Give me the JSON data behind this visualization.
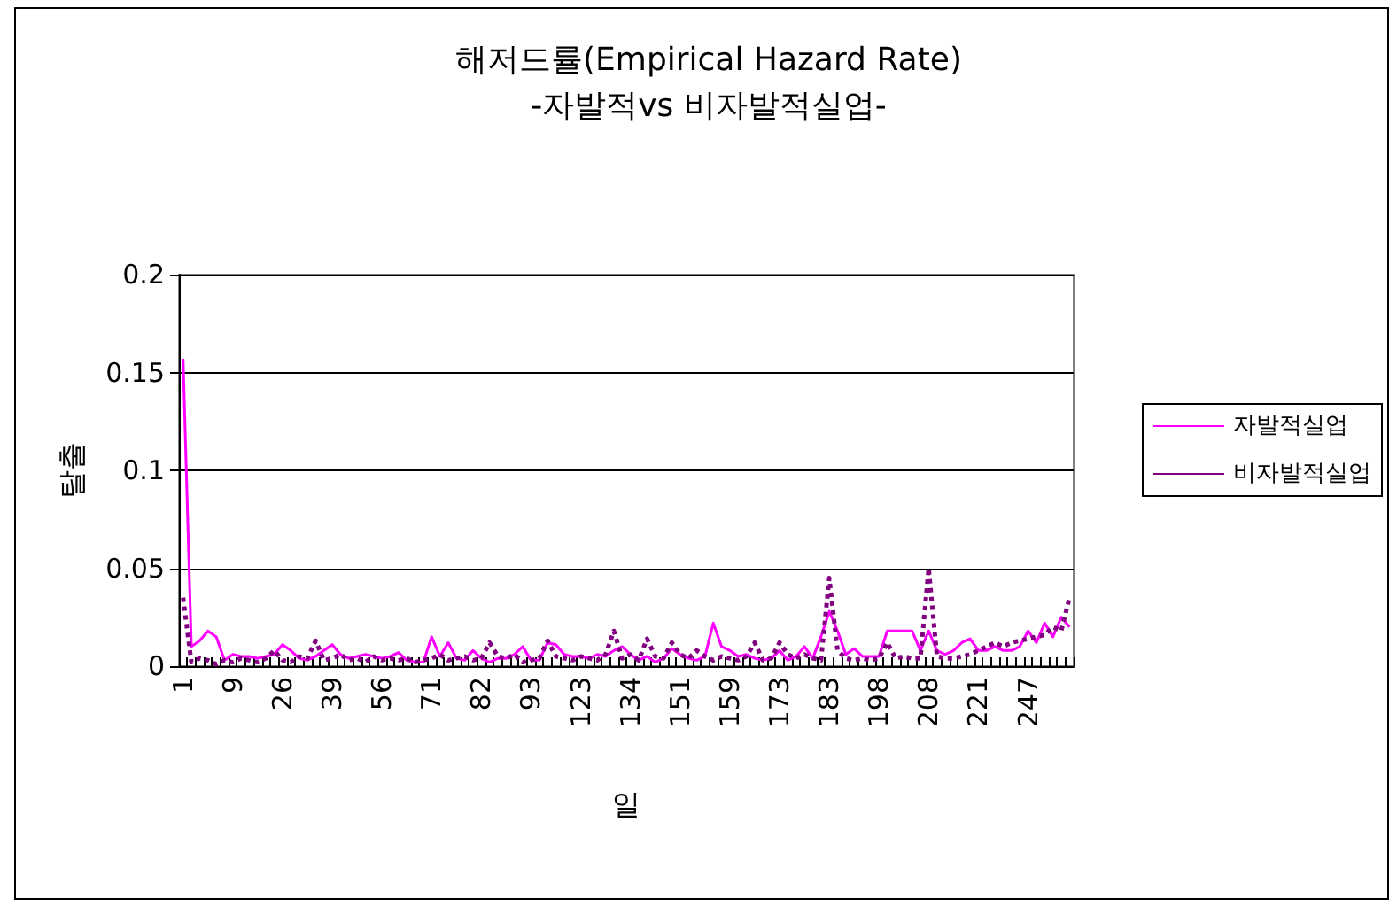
{
  "chart_data": {
    "type": "line",
    "title": "해저드률(Empirical Hazard Rate)",
    "subtitle": "-자발적vs 비자발적실업-",
    "xlabel": "일",
    "ylabel": "탈출",
    "categories": [
      "1",
      null,
      null,
      null,
      null,
      null,
      "9",
      null,
      null,
      null,
      null,
      null,
      "26",
      null,
      null,
      null,
      null,
      null,
      "39",
      null,
      null,
      null,
      null,
      null,
      "56",
      null,
      null,
      null,
      null,
      null,
      "71",
      null,
      null,
      null,
      null,
      null,
      "82",
      null,
      null,
      null,
      null,
      null,
      "93",
      null,
      null,
      null,
      null,
      null,
      "123",
      null,
      null,
      null,
      null,
      null,
      "134",
      null,
      null,
      null,
      null,
      null,
      "151",
      null,
      null,
      null,
      null,
      null,
      "159",
      null,
      null,
      null,
      null,
      null,
      "173",
      null,
      null,
      null,
      null,
      null,
      "183",
      null,
      null,
      null,
      null,
      null,
      "198",
      null,
      null,
      null,
      null,
      null,
      "208",
      null,
      null,
      null,
      null,
      null,
      "221",
      null,
      null,
      null,
      null,
      null,
      "247",
      null,
      null,
      null,
      null,
      null
    ],
    "series": [
      {
        "name": "자발적실업",
        "color": "#ff00ff",
        "line_style": "solid",
        "values": [
          0.157,
          0.01,
          0.013,
          0.018,
          0.015,
          0.003,
          0.006,
          0.005,
          0.005,
          0.004,
          0.005,
          0.006,
          0.011,
          0.008,
          0.004,
          0.003,
          0.005,
          0.008,
          0.011,
          0.006,
          0.004,
          0.005,
          0.006,
          0.005,
          0.004,
          0.005,
          0.007,
          0.003,
          0.002,
          0.002,
          0.015,
          0.005,
          0.012,
          0.004,
          0.003,
          0.008,
          0.004,
          0.002,
          0.004,
          0.004,
          0.006,
          0.01,
          0.003,
          0.003,
          0.012,
          0.011,
          0.006,
          0.005,
          0.005,
          0.004,
          0.006,
          0.005,
          0.008,
          0.01,
          0.006,
          0.003,
          0.005,
          0.002,
          0.004,
          0.009,
          0.006,
          0.004,
          0.003,
          0.005,
          0.022,
          0.01,
          0.008,
          0.005,
          0.006,
          0.004,
          0.003,
          0.004,
          0.008,
          0.003,
          0.005,
          0.01,
          0.004,
          0.015,
          0.028,
          0.018,
          0.006,
          0.009,
          0.005,
          0.005,
          0.005,
          0.018,
          0.018,
          0.018,
          0.018,
          0.008,
          0.018,
          0.008,
          0.006,
          0.008,
          0.012,
          0.014,
          0.008,
          0.008,
          0.01,
          0.008,
          0.008,
          0.01,
          0.018,
          0.012,
          0.022,
          0.015,
          0.025,
          0.02
        ]
      },
      {
        "name": "비자발적실업",
        "color": "#800080",
        "line_style": "dotted",
        "values": [
          0.035,
          0.002,
          0.004,
          0.003,
          0.001,
          0.003,
          0.002,
          0.004,
          0.003,
          0.002,
          0.004,
          0.008,
          0.003,
          0.002,
          0.005,
          0.004,
          0.013,
          0.003,
          0.004,
          0.006,
          0.003,
          0.004,
          0.002,
          0.005,
          0.003,
          0.004,
          0.003,
          0.004,
          0.002,
          0.003,
          0.004,
          0.006,
          0.003,
          0.004,
          0.005,
          0.003,
          0.004,
          0.012,
          0.005,
          0.004,
          0.006,
          0.002,
          0.003,
          0.004,
          0.013,
          0.005,
          0.004,
          0.003,
          0.005,
          0.004,
          0.003,
          0.006,
          0.018,
          0.004,
          0.006,
          0.003,
          0.014,
          0.005,
          0.004,
          0.012,
          0.006,
          0.004,
          0.008,
          0.005,
          0.003,
          0.005,
          0.004,
          0.003,
          0.005,
          0.012,
          0.003,
          0.004,
          0.012,
          0.006,
          0.004,
          0.006,
          0.004,
          0.003,
          0.045,
          0.008,
          0.004,
          0.003,
          0.004,
          0.003,
          0.004,
          0.012,
          0.004,
          0.005,
          0.004,
          0.004,
          0.05,
          0.005,
          0.004,
          0.004,
          0.005,
          0.006,
          0.008,
          0.01,
          0.012,
          0.01,
          0.012,
          0.013,
          0.014,
          0.015,
          0.016,
          0.02,
          0.018,
          0.035
        ]
      }
    ],
    "ylim": [
      0,
      0.2
    ],
    "yticks": [
      0,
      0.05,
      0.1,
      0.15,
      0.2
    ],
    "grid": "y",
    "legend": "right",
    "marker": "none"
  }
}
